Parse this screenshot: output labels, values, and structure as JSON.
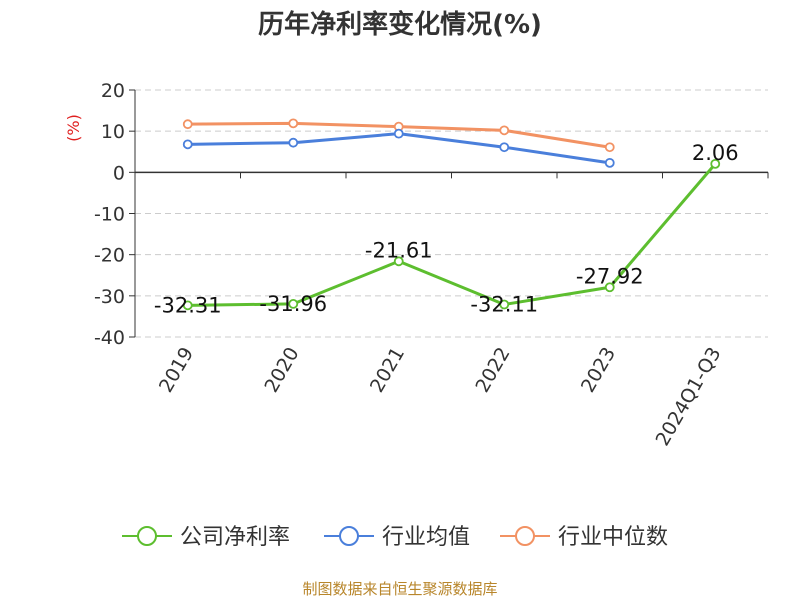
{
  "chart_data": {
    "type": "line",
    "title": "历年净利率变化情况(%)",
    "ylabel": "(%)",
    "categories": [
      "2019",
      "2020",
      "2021",
      "2022",
      "2023",
      "2024Q1-Q3"
    ],
    "ylim": [
      -40,
      20
    ],
    "yticks": [
      20,
      10,
      0,
      -10,
      -20,
      -30,
      -40
    ],
    "grid": true,
    "legend_position": "bottom",
    "series": [
      {
        "name": "公司净利率",
        "color": "#5dbe2f",
        "values": [
          -32.31,
          -31.96,
          -21.61,
          -32.11,
          -27.92,
          2.06
        ],
        "data_labels": [
          "-32.31",
          "-31.96",
          "-21.61",
          "-32.11",
          "-27.92",
          "2.06"
        ]
      },
      {
        "name": "行业均值",
        "color": "#4a7fdb",
        "values": [
          6.8,
          7.2,
          9.4,
          6.1,
          2.3,
          null
        ]
      },
      {
        "name": "行业中位数",
        "color": "#f29263",
        "values": [
          11.7,
          11.9,
          11.1,
          10.2,
          6.1,
          null
        ]
      }
    ]
  },
  "source": "制图数据来自恒生聚源数据库"
}
